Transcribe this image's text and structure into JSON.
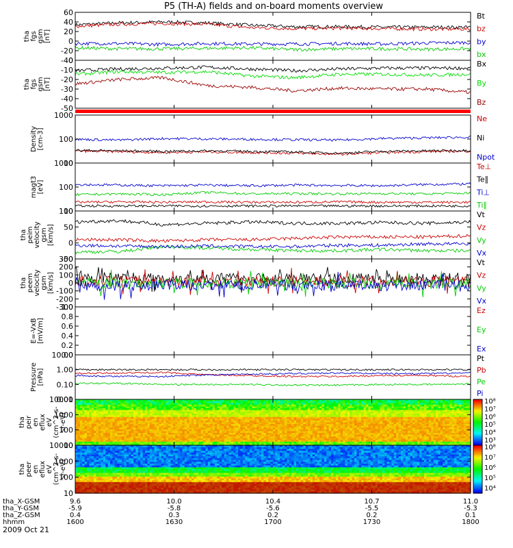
{
  "title": "P5 (TH-A) fields and on-board moments overview",
  "date_label": "2009 Oct 21",
  "footer": {
    "rows": [
      {
        "label": "tha_X-GSM",
        "values": [
          "9.6",
          "10.0",
          "10.4",
          "10.7",
          "11.0"
        ]
      },
      {
        "label": "tha_Y-GSM",
        "values": [
          "-5.9",
          "-5.8",
          "-5.6",
          "-5.5",
          "-5.3"
        ]
      },
      {
        "label": "tha_Z-GSM",
        "values": [
          "0.4",
          "0.3",
          "0.2",
          "0.2",
          "0.1"
        ]
      },
      {
        "label": "hhmm",
        "values": [
          "1600",
          "1630",
          "1700",
          "1730",
          "1800"
        ]
      }
    ]
  },
  "chart_data": [
    {
      "type": "line",
      "ylabel": [
        "tha",
        "fgs",
        "gsm",
        "[nT]"
      ],
      "ylim": [
        -40,
        60
      ],
      "ticks": [
        "60",
        "40",
        "20",
        "0",
        "-20",
        "-40"
      ],
      "series": [
        {
          "name": "Bt",
          "color": "#000000",
          "values": [
            34,
            38,
            40,
            38,
            33,
            30,
            30,
            29,
            29,
            29
          ]
        },
        {
          "name": "bz",
          "color": "#cc0000",
          "values": [
            31,
            35,
            37,
            35,
            28,
            26,
            27,
            26,
            25,
            25
          ]
        },
        {
          "name": "by",
          "color": "#0000cc",
          "values": [
            -5,
            -5,
            -7,
            -5,
            -6,
            -6,
            -5,
            -6,
            -4,
            -3
          ]
        },
        {
          "name": "bx",
          "color": "#00cc00",
          "values": [
            -14,
            -16,
            -16,
            -15,
            -14,
            -18,
            -16,
            -16,
            -17,
            -16
          ]
        }
      ]
    },
    {
      "type": "line",
      "ylabel": [
        "tha",
        "fgs",
        "gsm",
        "[nT]"
      ],
      "ylim": [
        -55,
        0
      ],
      "ticks": [
        "0",
        "-10",
        "-20",
        "-30",
        "-40",
        "-50"
      ],
      "series": [
        {
          "name": "Bx",
          "color": "#000000",
          "values": [
            -12,
            -10,
            -9,
            -8,
            -10,
            -12,
            -10,
            -9,
            -9,
            -9
          ]
        },
        {
          "name": "By",
          "color": "#00dd00",
          "values": [
            -16,
            -13,
            -14,
            -13,
            -18,
            -20,
            -16,
            -16,
            -17,
            -16
          ]
        },
        {
          "name": "Bz",
          "color": "#990000",
          "values": [
            -27,
            -22,
            -20,
            -29,
            -31,
            -35,
            -32,
            -33,
            -33,
            -37
          ]
        }
      ]
    },
    {
      "type": "line",
      "ylabel": [
        "Density",
        "[cm-3]"
      ],
      "ylim": [
        10,
        1500
      ],
      "log_scale": true,
      "ticks": [
        "1000",
        "100",
        "10"
      ],
      "series": [
        {
          "name": "Ne",
          "color": "#cc0000",
          "values": [
            35,
            33,
            30,
            32,
            30,
            28,
            25,
            30,
            33,
            35
          ]
        },
        {
          "name": "Ni",
          "color": "#000000",
          "values": [
            38,
            36,
            34,
            36,
            34,
            32,
            28,
            34,
            36,
            38
          ]
        },
        {
          "name": "Npot",
          "color": "#0000cc",
          "values": [
            120,
            110,
            130,
            125,
            120,
            115,
            110,
            130,
            140,
            150
          ]
        }
      ]
    },
    {
      "type": "line",
      "ylabel": [
        "magt3",
        "[eV]"
      ],
      "ylim": [
        10,
        1500
      ],
      "log_scale": true,
      "ticks": [
        "1000",
        "100",
        "10"
      ],
      "series": [
        {
          "name": "Te⊥",
          "color": "#cc0000",
          "values": [
            25,
            26,
            25,
            26,
            25,
            25,
            26,
            25,
            25,
            25
          ]
        },
        {
          "name": "Te∥",
          "color": "#000000",
          "values": [
            17,
            17,
            17,
            17,
            17,
            17,
            17,
            17,
            17,
            17
          ]
        },
        {
          "name": "Ti⊥",
          "color": "#0000cc",
          "values": [
            160,
            150,
            140,
            150,
            140,
            150,
            145,
            140,
            160,
            170
          ]
        },
        {
          "name": "Ti∥",
          "color": "#00cc00",
          "values": [
            55,
            60,
            55,
            70,
            60,
            62,
            60,
            62,
            60,
            65
          ]
        }
      ]
    },
    {
      "type": "line",
      "ylabel": [
        "tha",
        "peim",
        "velocity",
        "gsm",
        "[km/s]"
      ],
      "ylim": [
        -75,
        100
      ],
      "ticks": [
        "100",
        "50",
        "0",
        "-50"
      ],
      "series": [
        {
          "name": "Vt",
          "color": "#000000",
          "values": [
            60,
            65,
            50,
            55,
            60,
            55,
            55,
            58,
            55,
            60
          ]
        },
        {
          "name": "Vz",
          "color": "#cc0000",
          "values": [
            -5,
            -5,
            -10,
            -5,
            -5,
            0,
            5,
            5,
            5,
            10
          ]
        },
        {
          "name": "Vy",
          "color": "#00cc00",
          "values": [
            -50,
            -48,
            -30,
            -35,
            -40,
            -45,
            -45,
            -40,
            -45,
            -45
          ]
        },
        {
          "name": "Vx",
          "color": "#0000cc",
          "values": [
            -25,
            -28,
            -30,
            -28,
            -30,
            -30,
            -25,
            -25,
            -20,
            -20
          ]
        }
      ]
    },
    {
      "type": "line",
      "ylabel": [
        "tha",
        "peem",
        "velocity",
        "gsm",
        "[km/s]"
      ],
      "ylim": [
        -300,
        300
      ],
      "ticks": [
        "300",
        "200",
        "100",
        "0",
        "-100",
        "-200",
        "-300"
      ],
      "series": [
        {
          "name": "Vt",
          "color": "#000000",
          "values": [
            60,
            70,
            55,
            60,
            55,
            60,
            55,
            60,
            55,
            60
          ]
        },
        {
          "name": "Vz",
          "color": "#cc0000",
          "values": [
            20,
            20,
            15,
            20,
            20,
            15,
            20,
            15,
            20,
            15
          ]
        },
        {
          "name": "Vy",
          "color": "#00cc00",
          "values": [
            -10,
            -10,
            -5,
            -10,
            -5,
            -10,
            -5,
            -5,
            -10,
            -5
          ]
        },
        {
          "name": "Vx",
          "color": "#0000cc",
          "values": [
            -30,
            -40,
            -30,
            -30,
            -35,
            -30,
            -30,
            -35,
            -30,
            -30
          ]
        }
      ]
    },
    {
      "type": "line",
      "ylabel": [
        "E=-VxB",
        "[mV/m]"
      ],
      "ylim": [
        0,
        1
      ],
      "ticks": [
        "1.0",
        "0.8",
        "0.6",
        "0.4",
        "0.2",
        "0.0"
      ],
      "series": [
        {
          "name": "Ez",
          "color": "#cc0000",
          "values": []
        },
        {
          "name": "Ey",
          "color": "#00cc00",
          "values": []
        },
        {
          "name": "Ex",
          "color": "#0000cc",
          "values": []
        }
      ]
    },
    {
      "type": "line",
      "ylabel": [
        "Pressure",
        "[nPa]"
      ],
      "ylim": [
        0.01,
        10
      ],
      "log_scale": true,
      "ticks": [
        "10.00",
        "1.00",
        "0.10",
        "0.01"
      ],
      "series": [
        {
          "name": "Pt",
          "color": "#000000",
          "values": [
            1.0,
            1.0,
            1.0,
            1.0,
            1.0,
            1.0,
            1.0,
            1.0,
            1.0,
            1.0
          ]
        },
        {
          "name": "Pb",
          "color": "#cc0000",
          "values": [
            0.55,
            0.6,
            0.65,
            0.45,
            0.4,
            0.35,
            0.35,
            0.4,
            0.4,
            0.35
          ]
        },
        {
          "name": "Pe",
          "color": "#00cc00",
          "values": [
            0.12,
            0.12,
            0.1,
            0.1,
            0.1,
            0.09,
            0.09,
            0.1,
            0.1,
            0.11
          ]
        },
        {
          "name": "Pi",
          "color": "#0000cc",
          "values": [
            0.4,
            0.35,
            0.35,
            0.45,
            0.5,
            0.55,
            0.6,
            0.55,
            0.55,
            0.6
          ]
        }
      ]
    },
    {
      "type": "heatmap",
      "ylabel": [
        "tha",
        "peir",
        "en",
        "eflux",
        "eV",
        "(cm^2-s-",
        "sr-eV)"
      ],
      "ylim": [
        10,
        10000
      ],
      "log_scale": true,
      "ticks": [
        "10000",
        "1000",
        "100",
        "10"
      ],
      "colorbar_labels": [
        "10⁸",
        "10⁷",
        "10⁶",
        "10⁵",
        "10⁴",
        "10³"
      ]
    },
    {
      "type": "heatmap",
      "ylabel": [
        "tha",
        "peer",
        "en",
        "eflux",
        "eV",
        "(cm^2-s-",
        "sr-eV)"
      ],
      "ylim": [
        10,
        10000
      ],
      "log_scale": true,
      "ticks": [
        "10000",
        "1000",
        "100",
        "10"
      ],
      "colorbar_labels": [
        "10⁸",
        "10⁷",
        "10⁶",
        "10⁵",
        "10⁴"
      ]
    }
  ]
}
